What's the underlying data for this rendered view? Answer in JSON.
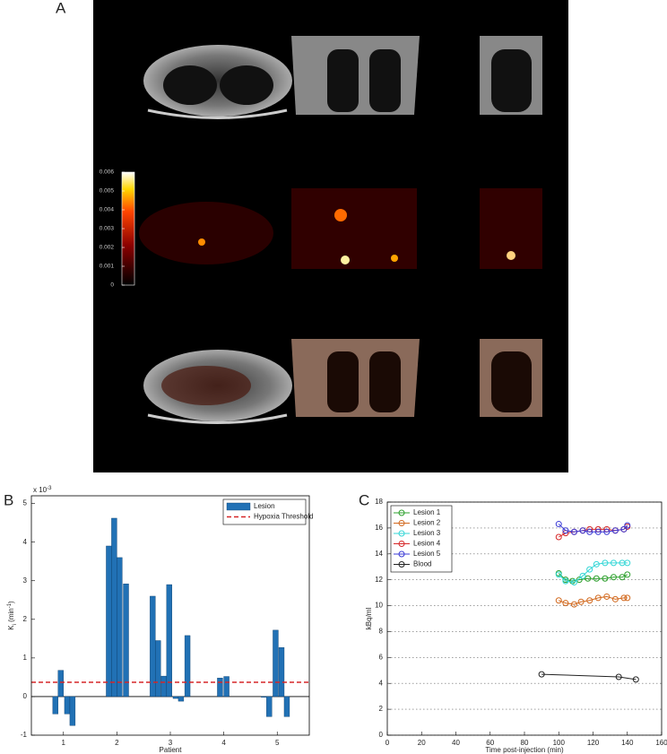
{
  "panel_a": {
    "label": "A",
    "colorbar": {
      "lim": [
        0,
        0.006
      ],
      "ticks": [
        0,
        0.001,
        0.002,
        0.003,
        0.004,
        0.005,
        0.006
      ]
    }
  },
  "chart_data": [
    {
      "type": "bar",
      "panel_label": "B",
      "xlabel": "Patient",
      "ylabel": {
        "main": "K",
        "sub": "i",
        "unit": " (min",
        "sup": "-1",
        "close": ")"
      },
      "y_exponent": {
        "base": "x 10",
        "power": "-3"
      },
      "x": [
        0.85,
        0.95,
        1.07,
        1.17,
        1.85,
        1.95,
        2.05,
        2.17,
        2.67,
        2.77,
        2.88,
        2.98,
        3.1,
        3.2,
        3.32,
        3.93,
        4.05,
        4.75,
        4.85,
        4.97,
        5.08,
        5.18
      ],
      "series": [
        {
          "name": "Lesion",
          "color": "#2171b5",
          "values": [
            -0.45,
            0.68,
            -0.45,
            -0.75,
            3.9,
            4.62,
            3.6,
            2.92,
            2.6,
            1.45,
            0.53,
            2.9,
            -0.05,
            -0.12,
            1.58,
            0.48,
            0.52,
            -0.02,
            -0.52,
            1.72,
            1.27,
            -0.52
          ]
        }
      ],
      "threshold": {
        "name": "Hypoxia Threshold",
        "value": 0.37,
        "color": "#d62728"
      },
      "xlim": [
        0.4,
        5.6
      ],
      "xticks": [
        1,
        2,
        3,
        4,
        5
      ],
      "ylim": [
        -1,
        5.2
      ],
      "yticks": [
        -1,
        0,
        1,
        2,
        3,
        4,
        5
      ],
      "legend": "upper right"
    },
    {
      "type": "line",
      "panel_label": "C",
      "xlabel": "Time post-injection (min)",
      "ylabel": "kBq/ml",
      "series": [
        {
          "name": "Lesion 1",
          "color": "#2ca02c",
          "x": [
            100,
            104,
            108,
            112,
            117,
            122,
            127,
            132,
            137,
            140
          ],
          "values": [
            12.5,
            12.0,
            11.9,
            12.0,
            12.1,
            12.1,
            12.1,
            12.2,
            12.2,
            12.4
          ]
        },
        {
          "name": "Lesion 2",
          "color": "#d2691e",
          "x": [
            100,
            104,
            109,
            113,
            118,
            123,
            128,
            133,
            138,
            140
          ],
          "values": [
            10.4,
            10.2,
            10.1,
            10.3,
            10.4,
            10.6,
            10.7,
            10.5,
            10.6,
            10.6
          ]
        },
        {
          "name": "Lesion 3",
          "color": "#33d6d6",
          "x": [
            100,
            104,
            109,
            114,
            118,
            122,
            127,
            132,
            137,
            140
          ],
          "values": [
            12.4,
            11.9,
            11.8,
            12.3,
            12.8,
            13.2,
            13.3,
            13.3,
            13.3,
            13.3
          ]
        },
        {
          "name": "Lesion 4",
          "color": "#d62728",
          "x": [
            100,
            104,
            109,
            114,
            118,
            123,
            128,
            133,
            138,
            140
          ],
          "values": [
            15.3,
            15.6,
            15.7,
            15.8,
            15.9,
            15.9,
            15.9,
            15.8,
            15.9,
            16.1
          ]
        },
        {
          "name": "Lesion 5",
          "color": "#3b3bd6",
          "x": [
            100,
            104,
            109,
            114,
            118,
            123,
            128,
            133,
            138,
            140
          ],
          "values": [
            16.3,
            15.8,
            15.7,
            15.8,
            15.7,
            15.7,
            15.7,
            15.8,
            15.9,
            16.2
          ]
        },
        {
          "name": "Blood",
          "color": "#222222",
          "x": [
            90,
            135,
            145
          ],
          "values": [
            4.7,
            4.5,
            4.3
          ]
        }
      ],
      "xlim": [
        0,
        160
      ],
      "xticks": [
        0,
        20,
        40,
        60,
        80,
        100,
        120,
        140,
        160
      ],
      "ylim": [
        0,
        18
      ],
      "yticks": [
        0,
        2,
        4,
        6,
        8,
        10,
        12,
        14,
        16,
        18
      ],
      "grid": true,
      "legend": "upper left"
    }
  ]
}
